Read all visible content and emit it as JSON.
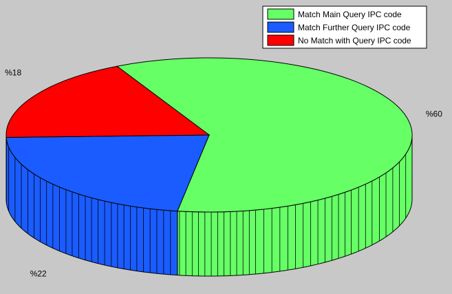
{
  "chart_data": {
    "type": "pie",
    "style": "3d",
    "categories": [
      "Match Main Query IPC code",
      "Match Further Query IPC code",
      "No Match with Query IPC code"
    ],
    "values": [
      60,
      22,
      18
    ],
    "labels": [
      "%60",
      "%22",
      "%18"
    ],
    "colors": [
      "#66ff66",
      "#1a5cff",
      "#ff0000"
    ],
    "legend": {
      "placement": "top-right",
      "entries": [
        "Match Main Query IPC code",
        "Match Further Query IPC code",
        "No Match with Query IPC code"
      ]
    },
    "background_color": "#c8c8c8",
    "side_color": "#66ff66"
  }
}
